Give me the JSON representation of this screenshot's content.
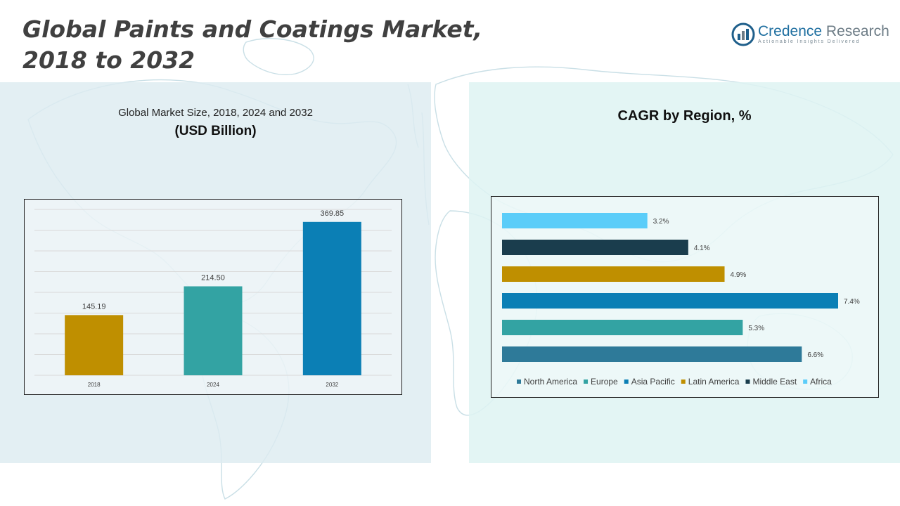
{
  "header": {
    "title_line1": "Global Paints and Coatings Market,",
    "title_line2": "2018 to 2032"
  },
  "logo": {
    "name_part1": "Credence",
    "name_part2": "Research",
    "tagline": "Actionable Insights Delivered"
  },
  "left_panel": {
    "subtitle": "Global Market Size, 2018, 2024 and 2032",
    "unit": "(USD Billion)"
  },
  "right_panel": {
    "title": "CAGR by Region, %"
  },
  "colors": {
    "gold": "#bf8f00",
    "teal": "#33a3a3",
    "blue": "#0b7fb5",
    "steel": "#2e7a99",
    "navy": "#1a3d4d",
    "sky": "#5bcdf9"
  },
  "chart_data": [
    {
      "type": "bar",
      "title": "Global Market Size, 2018, 2024 and 2032",
      "ylabel": "USD Billion",
      "categories": [
        "2018",
        "2024",
        "2032"
      ],
      "values": [
        145.19,
        214.5,
        369.85
      ],
      "value_labels": [
        "145.19",
        "214.50",
        "369.85"
      ],
      "colors": [
        "#bf8f00",
        "#33a3a3",
        "#0b7fb5"
      ],
      "ylim": [
        0,
        400
      ],
      "grid": true
    },
    {
      "type": "bar",
      "orientation": "horizontal",
      "title": "CAGR by Region, %",
      "categories": [
        "North America",
        "Europe",
        "Asia Pacific",
        "Latin America",
        "Middle East",
        "Africa"
      ],
      "values": [
        6.6,
        5.3,
        7.4,
        4.9,
        4.1,
        3.2
      ],
      "value_labels": [
        "6.6%",
        "5.3%",
        "7.4%",
        "4.9%",
        "4.1%",
        "3.2%"
      ],
      "colors": [
        "#2e7a99",
        "#33a3a3",
        "#0b7fb5",
        "#bf8f00",
        "#1a3d4d",
        "#5bcdf9"
      ],
      "xlim": [
        0,
        7.4
      ],
      "legend": "bottom",
      "grid": false
    }
  ]
}
